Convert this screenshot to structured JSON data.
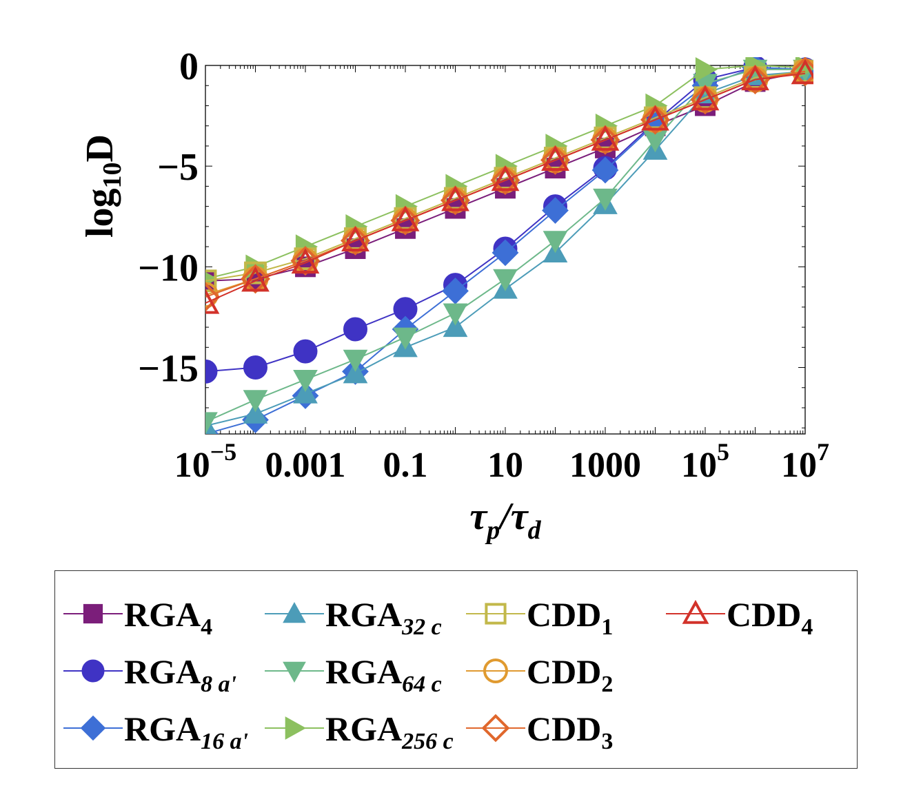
{
  "chart_data": {
    "type": "line",
    "title": "",
    "xlabel": "τp/τd",
    "xlabel_parts": {
      "main1": "τ",
      "sub1": "p",
      "slash": "/",
      "main2": "τ",
      "sub2": "d"
    },
    "ylabel": "log10D",
    "ylabel_parts": {
      "pre": "log",
      "sub": "10",
      "post": "D"
    },
    "xscale": "log10",
    "xlim_log10": [
      -5,
      7
    ],
    "ylim": [
      -18.3,
      0
    ],
    "x_log10": [
      -5,
      -4,
      -3,
      -2,
      -1,
      0,
      1,
      2,
      3,
      4,
      5,
      6,
      7
    ],
    "xticks": [
      {
        "log": -5,
        "base": "10",
        "exp": "−5"
      },
      {
        "log": -3,
        "base": "0.001",
        "exp": ""
      },
      {
        "log": -1,
        "base": "0.1",
        "exp": ""
      },
      {
        "log": 1,
        "base": "10",
        "exp": ""
      },
      {
        "log": 3,
        "base": "1000",
        "exp": ""
      },
      {
        "log": 5,
        "base": "10",
        "exp": "5"
      },
      {
        "log": 7,
        "base": "10",
        "exp": "7"
      }
    ],
    "yticks": [
      {
        "value": 0,
        "label": "0"
      },
      {
        "value": -5,
        "label": "−5"
      },
      {
        "value": -10,
        "label": "−10"
      },
      {
        "value": -15,
        "label": "−15"
      }
    ],
    "series": [
      {
        "id": "rga4",
        "name": "RGA",
        "sub": "4",
        "color": "#7B1E7A",
        "marker": "square-filled",
        "values": [
          -10.7,
          -10.6,
          -10.0,
          -9.1,
          -8.1,
          -7.1,
          -6.1,
          -5.1,
          -4.1,
          -3.0,
          -2.0,
          -0.8,
          -0.3
        ]
      },
      {
        "id": "rga8a",
        "name": "RGA",
        "sub": "8 a'",
        "color": "#3F33C4",
        "marker": "circle-filled",
        "values": [
          -15.2,
          -15.0,
          -14.2,
          -13.1,
          -12.1,
          -10.9,
          -9.1,
          -7.0,
          -5.1,
          -2.8,
          -0.7,
          -0.1,
          -0.2
        ]
      },
      {
        "id": "rga16a",
        "name": "RGA",
        "sub": "16 a'",
        "color": "#3D6FD6",
        "marker": "diamond-filled",
        "values": [
          -18.3,
          -17.6,
          -16.4,
          -15.2,
          -13.1,
          -11.2,
          -9.3,
          -7.2,
          -5.2,
          -2.9,
          -1.0,
          -0.1,
          -0.2
        ]
      },
      {
        "id": "rga32c",
        "name": "RGA",
        "sub": "32 c",
        "color": "#4C9CB8",
        "marker": "triangle-up-filled",
        "values": [
          -17.9,
          -17.3,
          -16.3,
          -15.3,
          -14.0,
          -13.0,
          -11.1,
          -9.3,
          -6.9,
          -4.2,
          -1.4,
          -0.5,
          -0.3
        ]
      },
      {
        "id": "rga64c",
        "name": "RGA",
        "sub": "64 c",
        "color": "#6DB88A",
        "marker": "triangle-down-filled",
        "values": [
          -17.7,
          -16.6,
          -15.6,
          -14.6,
          -13.5,
          -12.3,
          -10.6,
          -8.7,
          -6.6,
          -3.7,
          -0.9,
          -0.2,
          -0.2
        ]
      },
      {
        "id": "rga256c",
        "name": "RGA",
        "sub": "256 c",
        "color": "#8CC05F",
        "marker": "triangle-right-filled",
        "values": [
          -10.6,
          -10.0,
          -9.0,
          -8.0,
          -7.0,
          -6.0,
          -5.0,
          -4.0,
          -3.0,
          -2.0,
          -0.2,
          0.0,
          -0.1
        ]
      },
      {
        "id": "cdd1",
        "name": "CDD",
        "sub": "1",
        "color": "#C2B84A",
        "marker": "square-open",
        "values": [
          -10.7,
          -10.3,
          -9.6,
          -8.6,
          -7.6,
          -6.6,
          -5.6,
          -4.6,
          -3.6,
          -2.6,
          -1.6,
          -0.6,
          -0.3
        ]
      },
      {
        "id": "cdd2",
        "name": "CDD",
        "sub": "2",
        "color": "#E09A30",
        "marker": "circle-open",
        "values": [
          -11.4,
          -10.6,
          -9.7,
          -8.7,
          -7.7,
          -6.7,
          -5.7,
          -4.7,
          -3.7,
          -2.7,
          -1.7,
          -0.7,
          -0.3
        ]
      },
      {
        "id": "cdd3",
        "name": "CDD",
        "sub": "3",
        "color": "#E0672C",
        "marker": "diamond-open",
        "values": [
          -11.5,
          -10.6,
          -9.7,
          -8.7,
          -7.7,
          -6.7,
          -5.7,
          -4.7,
          -3.7,
          -2.7,
          -1.7,
          -0.7,
          -0.3
        ]
      },
      {
        "id": "cdd4",
        "name": "CDD",
        "sub": "4",
        "color": "#D2322A",
        "marker": "triangle-up-open",
        "values": [
          -11.8,
          -10.7,
          -9.8,
          -8.7,
          -7.7,
          -6.7,
          -5.7,
          -4.7,
          -3.7,
          -2.7,
          -1.7,
          -0.7,
          -0.4
        ]
      }
    ],
    "legend_position": "bottom",
    "legend_columns": [
      [
        "rga4",
        "rga8a",
        "rga16a"
      ],
      [
        "rga32c",
        "rga64c",
        "rga256c"
      ],
      [
        "cdd1",
        "cdd2",
        "cdd3"
      ],
      [
        "cdd4"
      ]
    ]
  }
}
